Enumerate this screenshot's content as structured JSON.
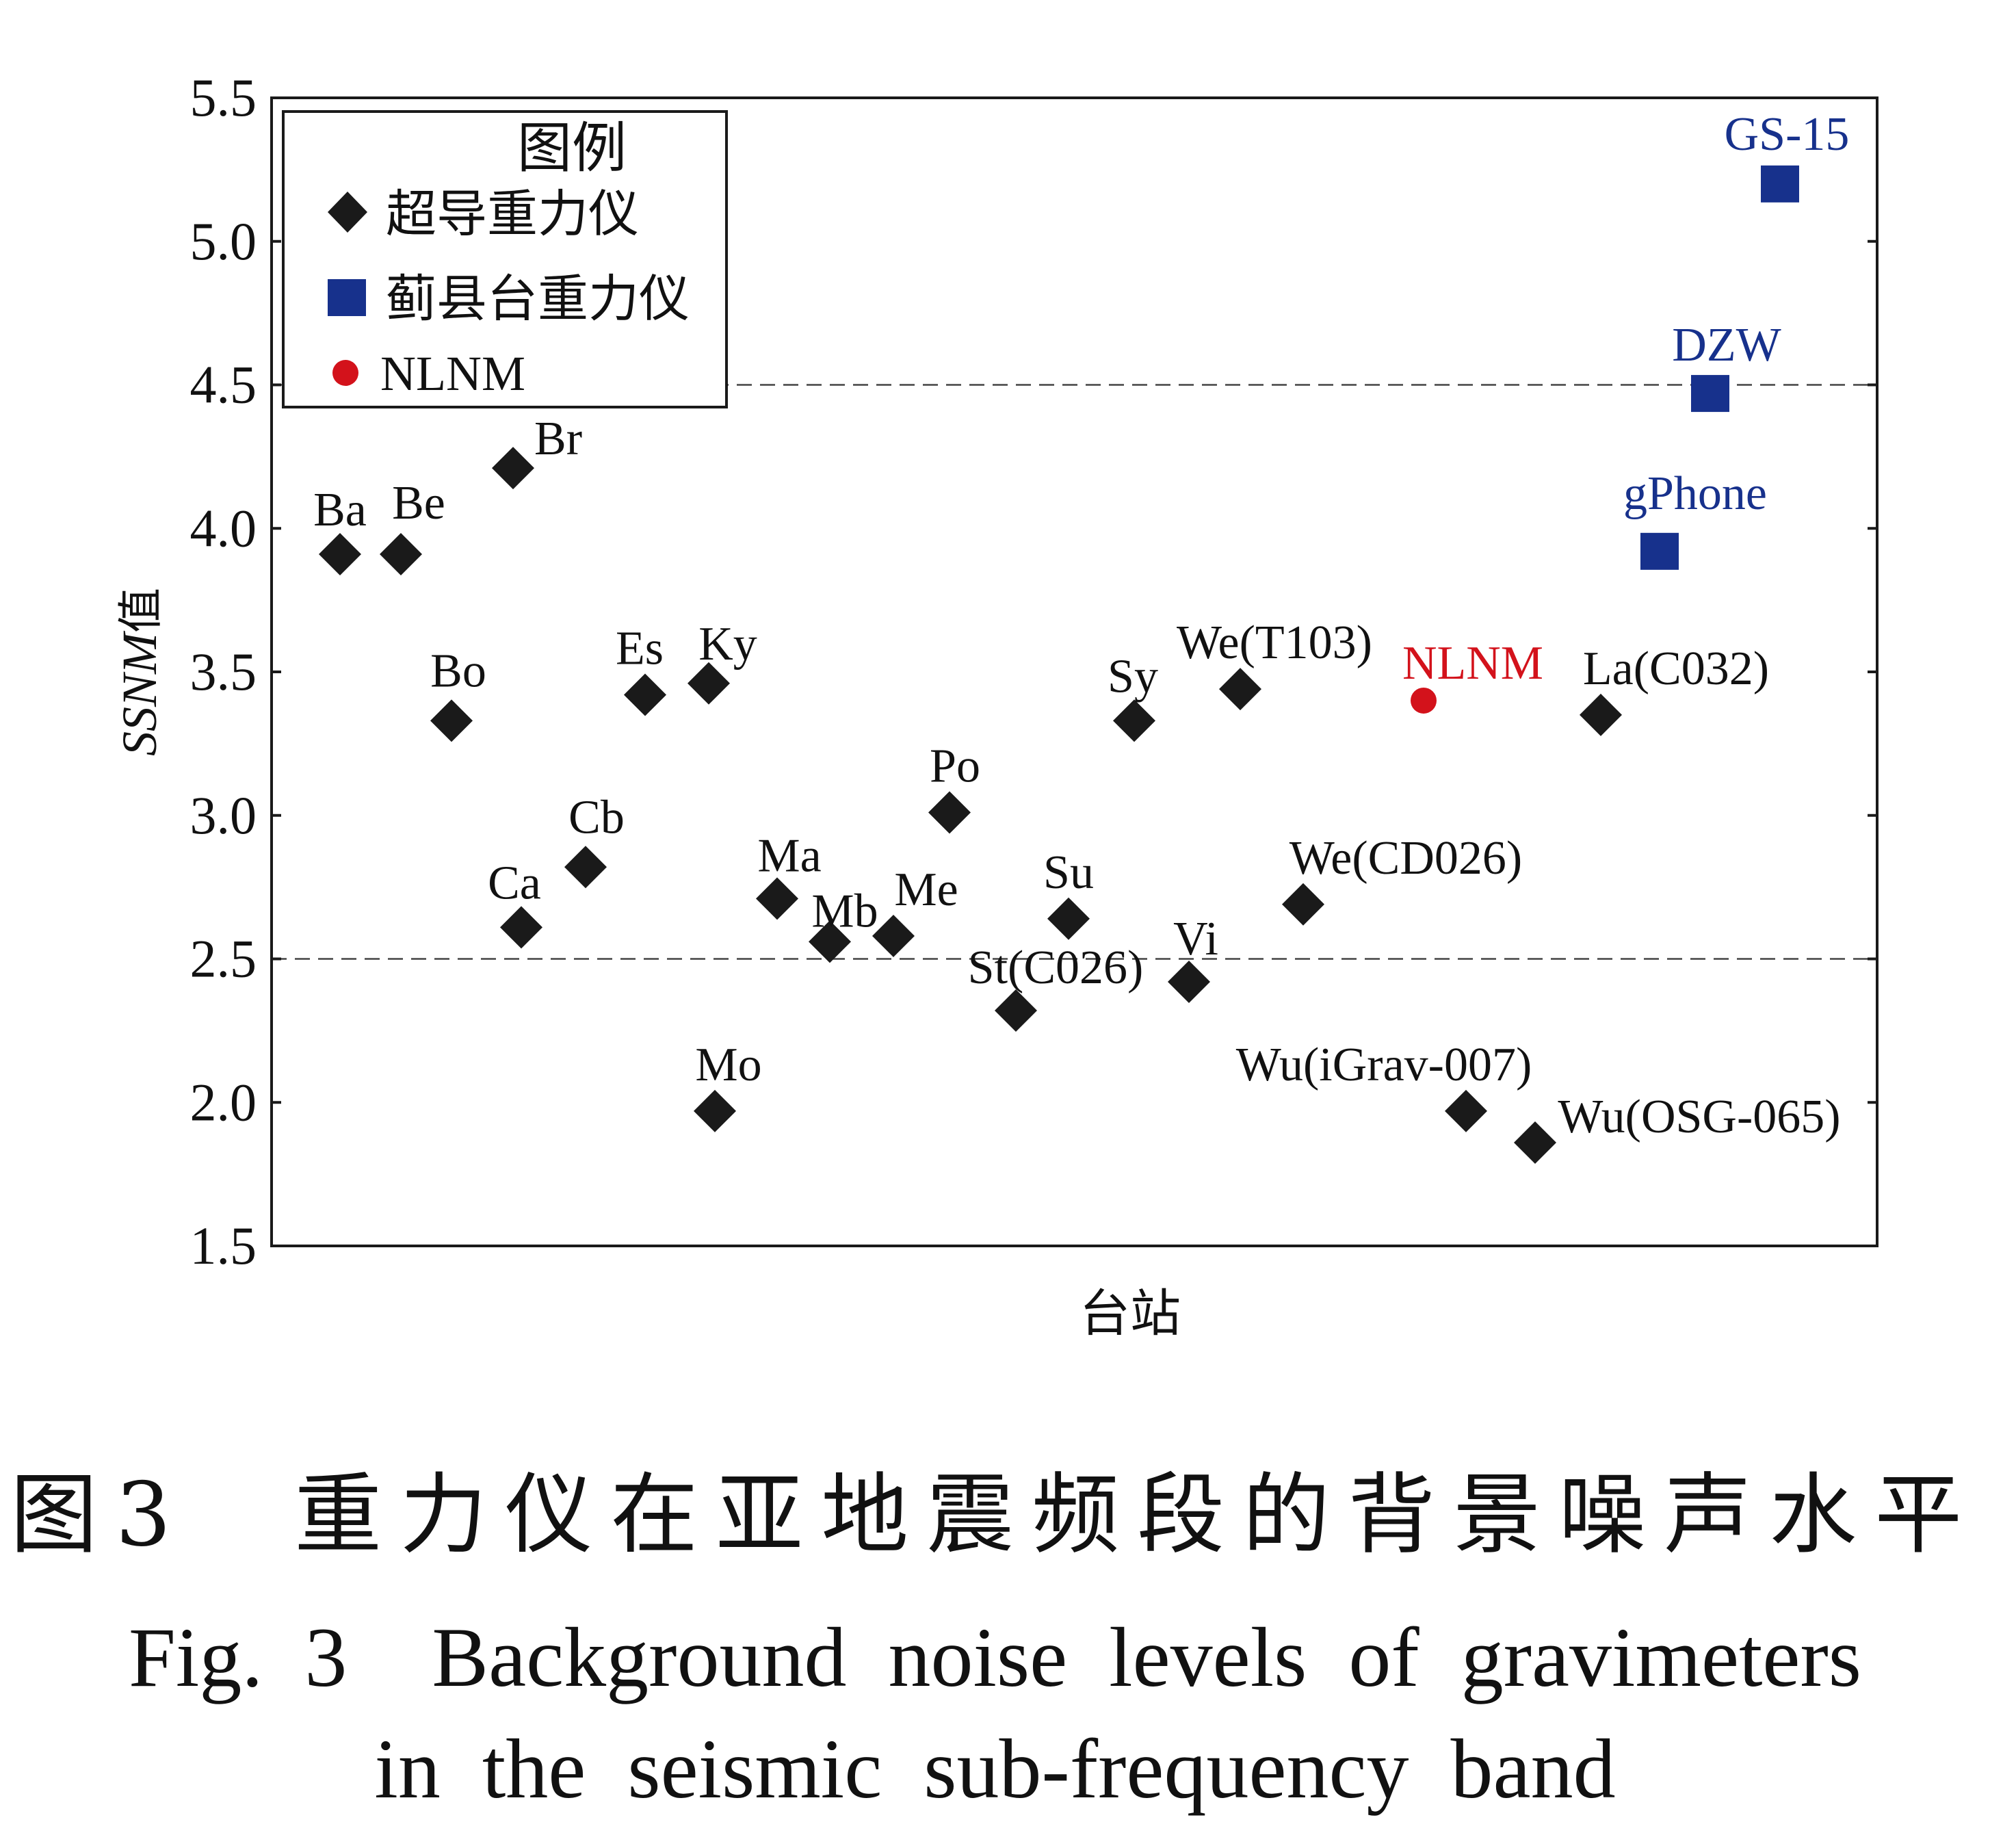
{
  "chart_data": {
    "type": "scatter",
    "ylabel_italic": "SSNM",
    "ylabel_suffix": "值",
    "xlabel": "台站",
    "ylim": [
      1.5,
      5.5
    ],
    "yticks": [
      "1.5",
      "2.0",
      "2.5",
      "3.0",
      "3.5",
      "4.0",
      "4.5",
      "5.0",
      "5.5"
    ],
    "reference_lines": [
      2.5,
      4.5
    ],
    "legend": {
      "title": "图例",
      "position": "top-left",
      "entries": [
        "超导重力仪",
        "蓟县台重力仪",
        "NLNM"
      ]
    },
    "colors": {
      "superconducting": "#1a1a1a",
      "jixian": "#17318c",
      "nlnm": "#d3121b"
    },
    "series": [
      {
        "name": "超导重力仪",
        "marker": "diamond",
        "points": [
          {
            "label": "Ba",
            "x": 1,
            "y": 3.91
          },
          {
            "label": "Be",
            "x": 2,
            "y": 3.91
          },
          {
            "label": "Bo",
            "x": 3,
            "y": 3.33
          },
          {
            "label": "Br",
            "x": 4,
            "y": 4.21
          },
          {
            "label": "Ca",
            "x": 5,
            "y": 2.61
          },
          {
            "label": "Cb",
            "x": 6,
            "y": 2.82
          },
          {
            "label": "Es",
            "x": 7,
            "y": 3.42
          },
          {
            "label": "Ky",
            "x": 8,
            "y": 3.46
          },
          {
            "label": "Mo",
            "x": 9,
            "y": 1.97
          },
          {
            "label": "Ma",
            "x": 10,
            "y": 2.71
          },
          {
            "label": "Mb",
            "x": 11,
            "y": 2.56
          },
          {
            "label": "Me",
            "x": 12,
            "y": 2.58
          },
          {
            "label": "Po",
            "x": 13,
            "y": 3.01
          },
          {
            "label": "St(C026)",
            "x": 14,
            "y": 2.32
          },
          {
            "label": "Su",
            "x": 15,
            "y": 2.64
          },
          {
            "label": "Sy",
            "x": 16,
            "y": 3.33
          },
          {
            "label": "Vi",
            "x": 17,
            "y": 2.42
          },
          {
            "label": "We(T103)",
            "x": 18,
            "y": 3.44
          },
          {
            "label": "We(CD026)",
            "x": 19,
            "y": 2.69
          },
          {
            "label": "Wu(iGrav-007)",
            "x": 20,
            "y": 1.97
          },
          {
            "label": "Wu(OSG-065)",
            "x": 21,
            "y": 1.86
          },
          {
            "label": "La(C032)",
            "x": 22,
            "y": 3.35
          }
        ]
      },
      {
        "name": "蓟县台重力仪",
        "marker": "square",
        "points": [
          {
            "label": "gPhone",
            "x": 23,
            "y": 3.92
          },
          {
            "label": "DZW",
            "x": 24,
            "y": 4.47
          },
          {
            "label": "GS-15",
            "x": 25,
            "y": 5.2
          }
        ]
      },
      {
        "name": "NLNM",
        "marker": "circle",
        "points": [
          {
            "label": "NLNM",
            "x": 26,
            "y": 3.4
          }
        ]
      }
    ]
  },
  "caption": {
    "zh": "图3　重力仪在亚地震频段的背景噪声水平",
    "en_line1": "Fig. 3　Background noise levels of gravimeters",
    "en_line2": "in the seismic sub-frequency band"
  }
}
